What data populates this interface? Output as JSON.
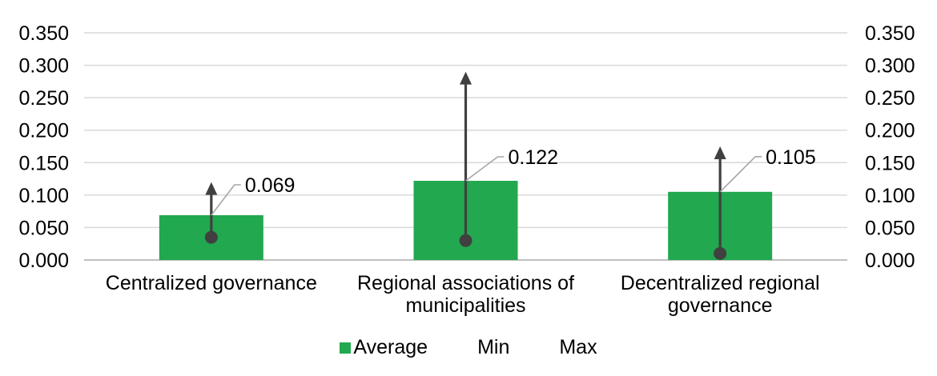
{
  "chart_data": {
    "type": "bar",
    "title": "",
    "xlabel": "",
    "ylabel": "",
    "categories": [
      "Centralized governance",
      "Regional associations of municipalities",
      "Decentralized regional governance"
    ],
    "category_lines": [
      [
        "Centralized governance"
      ],
      [
        "Regional associations of",
        "municipalities"
      ],
      [
        "Decentralized regional",
        "governance"
      ]
    ],
    "series": [
      {
        "name": "Average",
        "type": "bar",
        "color": "#22A84E",
        "values": [
          0.069,
          0.122,
          0.105
        ]
      },
      {
        "name": "Min",
        "type": "point",
        "color": "#404040",
        "values": [
          0.035,
          0.03,
          0.01
        ]
      },
      {
        "name": "Max",
        "type": "arrow",
        "color": "#404040",
        "values": [
          0.12,
          0.29,
          0.175
        ]
      }
    ],
    "data_labels": [
      "0.069",
      "0.122",
      "0.105"
    ],
    "ylim": [
      0,
      0.35
    ],
    "y_ticks": [
      0,
      0.05,
      0.1,
      0.15,
      0.2,
      0.25,
      0.3,
      0.35
    ],
    "y_tick_labels": [
      "0.000",
      "0.050",
      "0.100",
      "0.150",
      "0.200",
      "0.250",
      "0.300",
      "0.350"
    ],
    "dual_axis": true,
    "grid": true,
    "legend_position": "bottom",
    "legend": [
      {
        "label": "Average",
        "swatch": "#22A84E"
      },
      {
        "label": "Min",
        "swatch": null
      },
      {
        "label": "Max",
        "swatch": null
      }
    ],
    "colors": {
      "bar": "#22A84E",
      "marker": "#404040",
      "gridline": "#D9D9D9",
      "axisline": "#BFBFBF",
      "leader": "#A6A6A6",
      "text": "#000000",
      "background": "#FFFFFF"
    }
  }
}
